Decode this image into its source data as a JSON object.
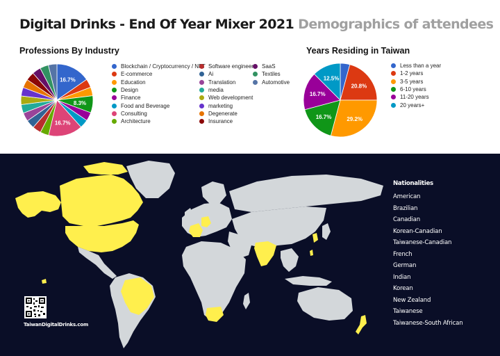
{
  "header": {
    "title": "Digital Drinks - End Of Year Mixer 2021",
    "subtitle": "Demographics of attendees"
  },
  "chart_data": [
    {
      "type": "pie",
      "title": "Professions By Industry",
      "labels": [
        "Blockchain / Cryptocurrency / NFT",
        "E-commerce",
        "Education",
        "Design",
        "Finance",
        "Food and Beverage",
        "Consulting",
        "Architecture",
        "Software engineer",
        "Ai",
        "Translation",
        "media",
        "Web development",
        "marketing",
        "Degenerate",
        "Insurance",
        "SaaS",
        "Textiles",
        "Automotive"
      ],
      "values": [
        16.7,
        4.2,
        4.2,
        8.3,
        4.2,
        4.2,
        16.7,
        4.2,
        4.2,
        4.2,
        4.2,
        4.2,
        4.2,
        4.2,
        4.2,
        4.2,
        4.2,
        4.2,
        4.2
      ],
      "colors": [
        "#3366cc",
        "#dc3912",
        "#ff9900",
        "#109618",
        "#990099",
        "#0099c6",
        "#dd4477",
        "#66aa00",
        "#b82e2e",
        "#316395",
        "#994499",
        "#22aa99",
        "#aaaa11",
        "#6633cc",
        "#e67300",
        "#8b0707",
        "#651067",
        "#329262",
        "#5574a6"
      ],
      "data_labels": [
        "16.7%",
        "",
        "",
        "8.3%",
        "",
        "",
        "16.7%",
        "",
        "",
        "",
        "",
        "",
        "",
        "",
        "",
        "",
        "",
        "",
        ""
      ]
    },
    {
      "type": "pie",
      "title": "Years Residing in Taiwan",
      "labels": [
        "Less than a year",
        "1-2 years",
        "3-5 years",
        "6-10 years",
        "11-20 years",
        "20 years+"
      ],
      "values": [
        4.2,
        20.8,
        29.2,
        16.7,
        16.7,
        12.5
      ],
      "colors": [
        "#3366cc",
        "#dc3912",
        "#ff9900",
        "#109618",
        "#990099",
        "#0099c6"
      ],
      "data_labels": [
        "",
        "20.8%",
        "29.2%",
        "16.7%",
        "16.7%",
        "12.5%"
      ]
    }
  ],
  "map": {
    "ocean_color": "#0a0e27",
    "land_color": "#d3d7da",
    "highlight_color": "#fff04d",
    "legend_title": "Nationalities",
    "nationalities": [
      "American",
      "Brazilian",
      "Canadian",
      "Korean-Canadian",
      "Taiwanese-Canadian",
      "French",
      "German",
      "Indian",
      "Korean",
      "New Zealand",
      "Taiwanese",
      "Taiwanese-South African"
    ],
    "website": "TaiwanDigitalDrinks.com"
  }
}
